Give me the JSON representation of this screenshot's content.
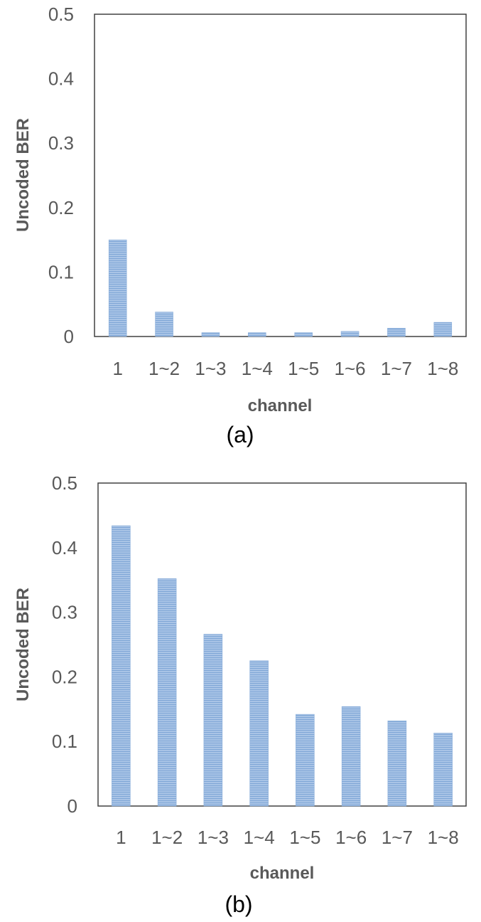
{
  "chart_data": [
    {
      "type": "bar",
      "caption": "(a)",
      "title": "",
      "xlabel": "channel",
      "ylabel": "Uncoded BER",
      "ylim": [
        0,
        0.5
      ],
      "yticks": [
        "0",
        "0.1",
        "0.2",
        "0.3",
        "0.4",
        "0.5"
      ],
      "grid": false,
      "categories": [
        "1",
        "1~2",
        "1~3",
        "1~4",
        "1~5",
        "1~6",
        "1~7",
        "1~8"
      ],
      "values": [
        0.15,
        0.038,
        0.006,
        0.006,
        0.006,
        0.008,
        0.013,
        0.022
      ],
      "colors": {
        "bar_fill": "#a9c4e6",
        "bar_stripe": "#7fa6d6",
        "axis": "#404040"
      }
    },
    {
      "type": "bar",
      "caption": "(b)",
      "title": "",
      "xlabel": "channel",
      "ylabel": "Uncoded BER",
      "ylim": [
        0,
        0.5
      ],
      "yticks": [
        "0",
        "0.1",
        "0.2",
        "0.3",
        "0.4",
        "0.5"
      ],
      "grid": false,
      "categories": [
        "1",
        "1~2",
        "1~3",
        "1~4",
        "1~5",
        "1~6",
        "1~7",
        "1~8"
      ],
      "values": [
        0.434,
        0.352,
        0.266,
        0.225,
        0.142,
        0.154,
        0.132,
        0.113
      ],
      "colors": {
        "bar_fill": "#a9c4e6",
        "bar_stripe": "#7fa6d6",
        "axis": "#404040"
      }
    }
  ]
}
